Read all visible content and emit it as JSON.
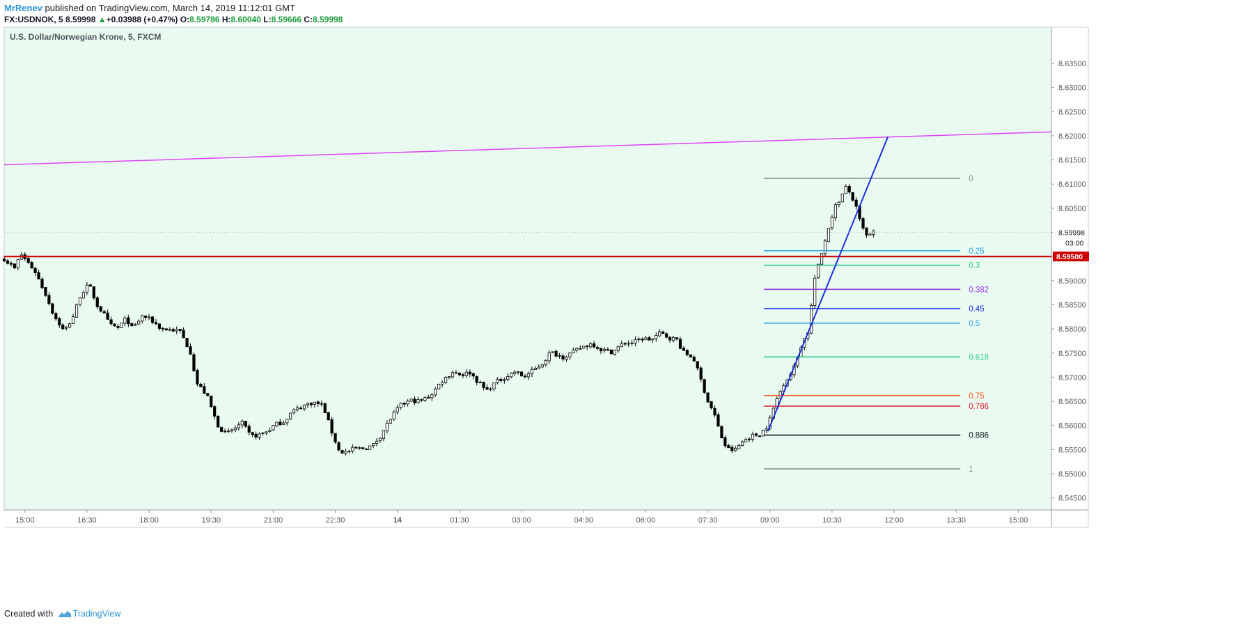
{
  "header": {
    "author": "MrRenev",
    "published": "published on TradingView.com, March 14, 2019 11:12:01 GMT",
    "symbol": "FX:USDNOK, 5",
    "last": "8.59998",
    "change_arrow": "▲",
    "change": "+0.03988 (+0.47%)",
    "o_label": "O:",
    "o": "8.59786",
    "h_label": "H:",
    "h": "8.60040",
    "l_label": "L:",
    "l": "8.59666",
    "c_label": "C:",
    "c": "8.59998"
  },
  "footer": {
    "created": "Created with",
    "brand": "TradingView",
    "logo_icon": "tradingview-logo-icon"
  },
  "colors": {
    "background": "#e9fbf1",
    "candle_up": "#ffffff",
    "candle_down": "#000000",
    "trendline": "#e040fb",
    "price_line": "#cc0000",
    "wave_line": "#1a2fe0"
  },
  "chart_data": {
    "type": "candlestick",
    "title": "U.S. Dollar/Norwegian Krone, 5, FXCM",
    "ylim": [
      8.5425,
      8.6425
    ],
    "y_ticks": [
      "8.54500",
      "8.55000",
      "8.55500",
      "8.56000",
      "8.56500",
      "8.57000",
      "8.57500",
      "8.58000",
      "8.58500",
      "8.59000",
      "8.59500",
      "8.60000",
      "8.60500",
      "8.61000",
      "8.61500",
      "8.62000",
      "8.62500",
      "8.63000",
      "8.63500"
    ],
    "x_ticks": [
      "15:00",
      "16:30",
      "18:00",
      "19:30",
      "21:00",
      "22:30",
      "14",
      "01:30",
      "03:00",
      "04:30",
      "06:00",
      "07:30",
      "09:00",
      "10:30",
      "12:00",
      "13:30",
      "15:00"
    ],
    "x_tick_units": [
      1.0,
      2.5,
      4.0,
      5.5,
      7.0,
      8.5,
      10.0,
      11.5,
      13.0,
      14.5,
      16.0,
      17.5,
      19.0,
      20.5,
      22.0,
      23.5,
      25.0
    ],
    "x_range": [
      0.5,
      25.8
    ],
    "close_path": [
      [
        0.5,
        8.5945
      ],
      [
        0.75,
        8.5925
      ],
      [
        0.9,
        8.5955
      ],
      [
        1.1,
        8.5935
      ],
      [
        1.25,
        8.5918
      ],
      [
        1.5,
        8.5872
      ],
      [
        1.7,
        8.5828
      ],
      [
        1.95,
        8.5795
      ],
      [
        2.15,
        8.5822
      ],
      [
        2.35,
        8.5872
      ],
      [
        2.55,
        8.5892
      ],
      [
        2.75,
        8.5848
      ],
      [
        2.9,
        8.5832
      ],
      [
        3.05,
        8.5808
      ],
      [
        3.25,
        8.5802
      ],
      [
        3.45,
        8.5822
      ],
      [
        3.6,
        8.58
      ],
      [
        3.85,
        8.5828
      ],
      [
        4.1,
        8.5815
      ],
      [
        4.3,
        8.58
      ],
      [
        4.55,
        8.5798
      ],
      [
        4.75,
        8.5795
      ],
      [
        5.0,
        8.5752
      ],
      [
        5.15,
        8.5688
      ],
      [
        5.4,
        8.5662
      ],
      [
        5.65,
        8.5602
      ],
      [
        5.85,
        8.5582
      ],
      [
        6.05,
        8.5593
      ],
      [
        6.25,
        8.5605
      ],
      [
        6.45,
        8.5578
      ],
      [
        6.65,
        8.558
      ],
      [
        6.85,
        8.5588
      ],
      [
        7.05,
        8.5602
      ],
      [
        7.25,
        8.5608
      ],
      [
        7.45,
        8.5628
      ],
      [
        7.7,
        8.564
      ],
      [
        7.95,
        8.5648
      ],
      [
        8.2,
        8.5642
      ],
      [
        8.4,
        8.559
      ],
      [
        8.6,
        8.5545
      ],
      [
        8.8,
        8.5545
      ],
      [
        8.95,
        8.5552
      ],
      [
        9.15,
        8.5552
      ],
      [
        9.4,
        8.5558
      ],
      [
        9.6,
        8.558
      ],
      [
        9.8,
        8.561
      ],
      [
        10.05,
        8.564
      ],
      [
        10.3,
        8.5652
      ],
      [
        10.55,
        8.565
      ],
      [
        10.8,
        8.5662
      ],
      [
        11.05,
        8.569
      ],
      [
        11.35,
        8.5712
      ],
      [
        11.55,
        8.5705
      ],
      [
        11.75,
        8.571
      ],
      [
        11.95,
        8.569
      ],
      [
        12.15,
        8.5672
      ],
      [
        12.35,
        8.5688
      ],
      [
        12.6,
        8.57
      ],
      [
        12.85,
        8.5712
      ],
      [
        13.05,
        8.57
      ],
      [
        13.25,
        8.5712
      ],
      [
        13.5,
        8.5728
      ],
      [
        13.7,
        8.5752
      ],
      [
        14.0,
        8.5742
      ],
      [
        14.25,
        8.5752
      ],
      [
        14.45,
        8.5762
      ],
      [
        14.7,
        8.577
      ],
      [
        14.9,
        8.5758
      ],
      [
        15.2,
        8.5752
      ],
      [
        15.45,
        8.577
      ],
      [
        15.7,
        8.5772
      ],
      [
        15.9,
        8.578
      ],
      [
        16.15,
        8.5778
      ],
      [
        16.35,
        8.5792
      ],
      [
        16.55,
        8.5782
      ],
      [
        16.75,
        8.5778
      ],
      [
        16.9,
        8.5752
      ],
      [
        17.15,
        8.574
      ],
      [
        17.35,
        8.569
      ],
      [
        17.5,
        8.565
      ],
      [
        17.65,
        8.5625
      ],
      [
        17.8,
        8.5582
      ],
      [
        17.95,
        8.5552
      ],
      [
        18.15,
        8.5548
      ],
      [
        18.35,
        8.5568
      ],
      [
        18.55,
        8.5578
      ],
      [
        18.75,
        8.5582
      ],
      [
        18.95,
        8.56
      ],
      [
        19.15,
        8.5652
      ],
      [
        19.35,
        8.569
      ],
      [
        19.55,
        8.5712
      ],
      [
        19.75,
        8.5765
      ],
      [
        19.95,
        8.58
      ],
      [
        20.05,
        8.5895
      ],
      [
        20.2,
        8.594
      ],
      [
        20.35,
        8.599
      ],
      [
        20.55,
        8.605
      ],
      [
        20.7,
        8.607
      ],
      [
        20.85,
        8.6095
      ],
      [
        21.05,
        8.606
      ],
      [
        21.2,
        8.6015
      ],
      [
        21.35,
        8.599
      ],
      [
        21.5,
        8.6
      ]
    ],
    "fib_levels": [
      {
        "label": "0",
        "price": 8.6112,
        "color": "#8f8f8f"
      },
      {
        "label": "0.25",
        "price": 8.5962,
        "color": "#2fa8e8"
      },
      {
        "label": "0.3",
        "price": 8.5932,
        "color": "#2ec987"
      },
      {
        "label": "0.382",
        "price": 8.5882,
        "color": "#9b3ce6"
      },
      {
        "label": "0.45",
        "price": 8.5842,
        "color": "#1a2fe0"
      },
      {
        "label": "0.5",
        "price": 8.5812,
        "color": "#2fa8e8"
      },
      {
        "label": "0.618",
        "price": 8.5742,
        "color": "#2ec987"
      },
      {
        "label": "0.75",
        "price": 8.5662,
        "color": "#ff5a1f"
      },
      {
        "label": "0.786",
        "price": 8.564,
        "color": "#e01a2f"
      },
      {
        "label": "0.886",
        "price": 8.558,
        "color": "#131722"
      },
      {
        "label": "1",
        "price": 8.551,
        "color": "#8f8f8f"
      }
    ],
    "fib_x": [
      18.85,
      23.6
    ],
    "trendline": [
      [
        0.5,
        8.614
      ],
      [
        25.8,
        8.6208
      ]
    ],
    "wave_line": [
      [
        18.95,
        8.5588
      ],
      [
        21.85,
        8.6198
      ]
    ],
    "current_price": {
      "price": 8.59998,
      "label": "8.59998",
      "countdown": "03:00"
    },
    "horizontal_line": {
      "price": 8.595,
      "label": "8.59500"
    }
  }
}
